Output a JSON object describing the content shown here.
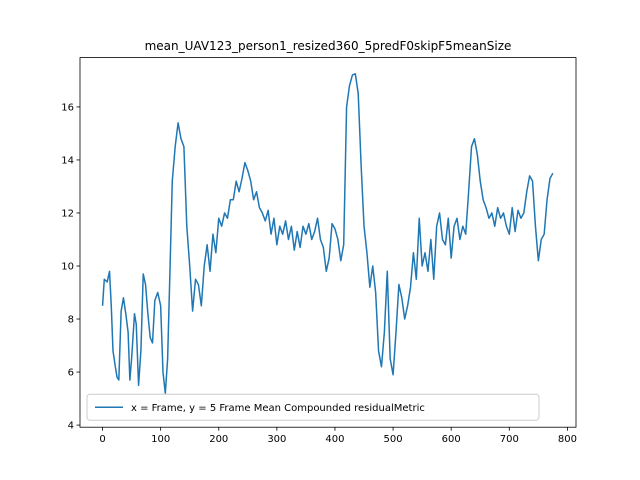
{
  "chart_data": {
    "type": "line",
    "title": "mean_UAV123_person1_resized360_5predF0skipF5meanSize",
    "legend_position": "lower left",
    "x": [
      0,
      3,
      8,
      12,
      15,
      18,
      22,
      25,
      28,
      32,
      36,
      40,
      44,
      47,
      50,
      55,
      58,
      62,
      66,
      70,
      74,
      78,
      82,
      86,
      90,
      95,
      100,
      104,
      108,
      112,
      116,
      120,
      125,
      130,
      135,
      140,
      145,
      150,
      155,
      160,
      165,
      170,
      175,
      180,
      185,
      190,
      195,
      200,
      205,
      210,
      215,
      220,
      225,
      230,
      235,
      240,
      245,
      250,
      255,
      260,
      265,
      270,
      275,
      280,
      285,
      290,
      295,
      300,
      305,
      310,
      315,
      320,
      325,
      330,
      335,
      340,
      345,
      350,
      355,
      360,
      365,
      370,
      375,
      380,
      385,
      390,
      395,
      400,
      405,
      410,
      415,
      420,
      425,
      430,
      435,
      440,
      445,
      450,
      455,
      460,
      465,
      470,
      475,
      480,
      485,
      490,
      495,
      500,
      505,
      510,
      515,
      520,
      525,
      530,
      535,
      540,
      545,
      550,
      555,
      560,
      565,
      570,
      575,
      580,
      585,
      590,
      595,
      600,
      605,
      610,
      615,
      620,
      625,
      630,
      635,
      640,
      645,
      650,
      655,
      660,
      665,
      670,
      675,
      680,
      685,
      690,
      695,
      700,
      705,
      710,
      715,
      720,
      725,
      730,
      735,
      740,
      745,
      750,
      755,
      760,
      765,
      770,
      775
    ],
    "series": [
      {
        "name": "x = Frame, y = 5 Frame Mean Compounded residualMetric",
        "color": "#1f77b4",
        "values": [
          8.5,
          9.5,
          9.4,
          9.8,
          8.5,
          6.8,
          6.2,
          5.8,
          5.7,
          8.3,
          8.8,
          8.2,
          7.5,
          5.7,
          6.5,
          8.2,
          7.8,
          5.5,
          6.8,
          9.7,
          9.3,
          8.2,
          7.3,
          7.1,
          8.7,
          9.0,
          8.5,
          6.0,
          5.2,
          6.5,
          9.8,
          13.2,
          14.5,
          15.4,
          14.8,
          14.5,
          11.5,
          10.0,
          8.3,
          9.5,
          9.3,
          8.5,
          10.0,
          10.8,
          9.8,
          11.2,
          10.5,
          11.8,
          11.5,
          12.0,
          11.8,
          12.5,
          12.5,
          13.2,
          12.8,
          13.3,
          13.9,
          13.6,
          13.2,
          12.5,
          12.8,
          12.2,
          12.0,
          11.7,
          12.1,
          11.2,
          11.8,
          10.8,
          11.5,
          11.2,
          11.7,
          11.0,
          11.5,
          10.6,
          11.3,
          10.7,
          11.5,
          11.2,
          11.6,
          11.0,
          11.3,
          11.8,
          11.0,
          10.7,
          9.8,
          10.3,
          11.6,
          11.4,
          11.0,
          10.2,
          10.8,
          16.0,
          16.8,
          17.2,
          17.25,
          16.5,
          13.8,
          11.5,
          10.5,
          9.2,
          10.0,
          9.0,
          6.8,
          6.2,
          7.5,
          9.8,
          6.5,
          5.9,
          7.5,
          9.3,
          8.8,
          8.0,
          8.5,
          9.2,
          10.5,
          9.5,
          11.8,
          10.0,
          10.5,
          9.8,
          11.0,
          9.5,
          11.5,
          12.0,
          11.0,
          10.8,
          11.8,
          10.3,
          11.5,
          11.8,
          11.0,
          11.5,
          11.2,
          12.8,
          14.5,
          14.8,
          14.2,
          13.2,
          12.5,
          12.2,
          11.8,
          12.0,
          11.5,
          12.2,
          11.8,
          12.0,
          11.5,
          11.2,
          12.2,
          11.3,
          12.1,
          11.8,
          12.0,
          12.8,
          13.4,
          13.2,
          11.5,
          10.2,
          11.0,
          11.2,
          12.5,
          13.3,
          13.5
        ]
      }
    ],
    "xlim": [
      -38.8,
      814.8
    ],
    "xticks": [
      0,
      100,
      200,
      300,
      400,
      500,
      600,
      700,
      800
    ],
    "ylim": [
      3.92,
      17.86
    ],
    "yticks": [
      4,
      6,
      8,
      10,
      12,
      14,
      16
    ]
  }
}
